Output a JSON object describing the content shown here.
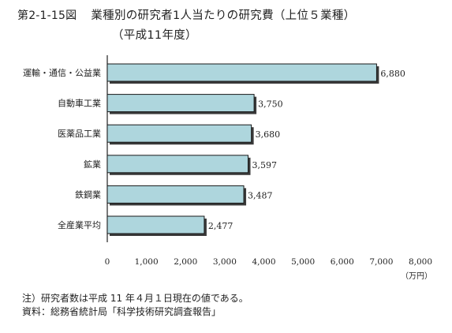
{
  "header": {
    "figure_number": "第2-1-15図",
    "title": "業種別の研究者1人当たりの研究費（上位５業種）",
    "subtitle": "（平成11年度）"
  },
  "notes": {
    "note": "注）研究者数は平成 11 年４月１日現在の値である。",
    "source": "資料：総務省統計局「科学技術研究調査報告」"
  },
  "colors": {
    "bar_fill": "#aed6dd",
    "bar_stroke": "#1a1a1a",
    "bar_shadow": "#3a3a3a",
    "axis": "#222222"
  },
  "chart_data": {
    "type": "bar",
    "orientation": "horizontal",
    "categories": [
      "運輸・通信・公益業",
      "自動車工業",
      "医薬品工業",
      "鉱業",
      "鉄鋼業",
      "全産業平均"
    ],
    "values": [
      6880,
      3750,
      3680,
      3597,
      3487,
      2477
    ],
    "value_labels": [
      "6,880",
      "3,750",
      "3,680",
      "3,597",
      "3,487",
      "2,477"
    ],
    "xlim": [
      0,
      8000
    ],
    "xticks": [
      0,
      1000,
      2000,
      3000,
      4000,
      5000,
      6000,
      7000,
      8000
    ],
    "xtick_labels": [
      "0",
      "1,000",
      "2,000",
      "3,000",
      "4,000",
      "5,000",
      "6,000",
      "7,000",
      "8,000"
    ],
    "unit": "（万円）",
    "grid": false,
    "legend": "none"
  }
}
